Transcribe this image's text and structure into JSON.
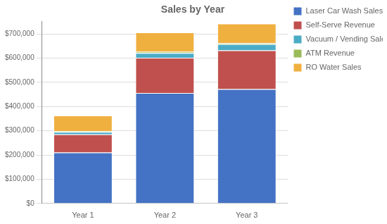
{
  "chart_data": {
    "type": "bar",
    "title": "Sales by Year",
    "categories": [
      "Year 1",
      "Year 2",
      "Year 3"
    ],
    "series": [
      {
        "name": "Laser Car Wash Sales",
        "color": "#4472C4",
        "values": [
          210000,
          456000,
          472000
        ]
      },
      {
        "name": "Self-Serve Revenue",
        "color": "#C0504D",
        "values": [
          75000,
          145000,
          160000
        ]
      },
      {
        "name": "Vacuum / Vending Sales",
        "color": "#4BACC6",
        "values": [
          10000,
          20000,
          25000
        ]
      },
      {
        "name": "ATM Revenue",
        "color": "#9BBB59",
        "values": [
          3000,
          5000,
          5000
        ]
      },
      {
        "name": "RO Water Sales",
        "color": "#F0B040",
        "values": [
          65000,
          80000,
          80000
        ]
      }
    ],
    "stacked": true,
    "ylim": [
      0,
      750000
    ],
    "yticks": [
      {
        "value": 0,
        "label": "$0"
      },
      {
        "value": 100000,
        "label": "$100,000"
      },
      {
        "value": 200000,
        "label": "$200,000"
      },
      {
        "value": 300000,
        "label": "$300,000"
      },
      {
        "value": 400000,
        "label": "$400,000"
      },
      {
        "value": 500000,
        "label": "$500,000"
      },
      {
        "value": 600000,
        "label": "$600,000"
      },
      {
        "value": 700000,
        "label": "$700,000"
      }
    ],
    "grid": true,
    "legend": "upper right"
  }
}
